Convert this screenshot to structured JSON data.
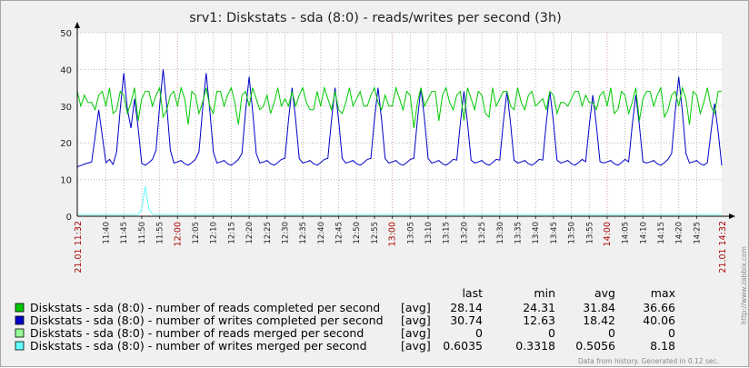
{
  "chart_data": {
    "type": "line",
    "title": "srv1: Diskstats - sda (8:0) - reads/writes per second (3h)",
    "ylim": [
      0,
      50
    ],
    "y_ticks": [
      "0",
      "10",
      "20",
      "30",
      "40",
      "50"
    ],
    "x_range": [
      "11:32",
      "14:32"
    ],
    "x_start_label": "21.01 11:32",
    "x_end_label": "21.01 14:32",
    "x_ticks": [
      "11:40",
      "11:45",
      "11:50",
      "11:55",
      "12:00",
      "12:05",
      "12:10",
      "12:15",
      "12:20",
      "12:25",
      "12:30",
      "12:35",
      "12:40",
      "12:45",
      "12:50",
      "12:55",
      "13:00",
      "13:05",
      "13:10",
      "13:15",
      "13:20",
      "13:25",
      "13:30",
      "13:35",
      "13:40",
      "13:45",
      "13:50",
      "13:55",
      "14:00",
      "14:05",
      "14:10",
      "14:15",
      "14:20",
      "14:25"
    ],
    "major_ticks": [
      "12:00",
      "13:00",
      "14:00"
    ],
    "grid": true,
    "legend_columns": [
      "last",
      "min",
      "avg",
      "max"
    ],
    "series": [
      {
        "name": "Diskstats - sda (8:0) - number of reads completed per second",
        "agg": "[avg]",
        "color": "#00c800",
        "last": "28.14",
        "min": "24.31",
        "avg": "31.84",
        "max": "36.66",
        "pattern": [
          34,
          30,
          33,
          35,
          31,
          29,
          33,
          34,
          30,
          35,
          32,
          29,
          34,
          33,
          28,
          31,
          35,
          30,
          32,
          34
        ],
        "segments": [
          {
            "from": 0,
            "to": 43,
            "low": 27
          }
        ]
      },
      {
        "name": "Diskstats - sda (8:0) - number of writes completed per second",
        "agg": "[avg]",
        "color": "#0000c8",
        "last": "30.74",
        "min": "12.63",
        "avg": "18.42",
        "max": "40.06",
        "pattern": [
          13.5,
          13.8,
          14.2,
          14.5,
          14.8,
          15.2,
          14.3,
          13.9,
          14.6,
          15.5,
          14.1,
          13.6
        ],
        "peaks": [
          {
            "t": 6,
            "v": 29
          },
          {
            "t": 13,
            "v": 39
          },
          {
            "t": 16,
            "v": 32
          },
          {
            "t": 24,
            "v": 40
          },
          {
            "t": 36,
            "v": 39
          },
          {
            "t": 48,
            "v": 38
          },
          {
            "t": 60,
            "v": 35
          },
          {
            "t": 72,
            "v": 35
          },
          {
            "t": 84,
            "v": 35
          },
          {
            "t": 96,
            "v": 35
          },
          {
            "t": 108,
            "v": 34
          },
          {
            "t": 120,
            "v": 34
          },
          {
            "t": 132,
            "v": 34
          },
          {
            "t": 144,
            "v": 33
          },
          {
            "t": 156,
            "v": 33
          },
          {
            "t": 168,
            "v": 38
          },
          {
            "t": 178,
            "v": 30.7
          }
        ]
      },
      {
        "name": "Diskstats - sda (8:0) - number of reads merged per second",
        "agg": "[avg]",
        "color": "#96ff96",
        "last": "0",
        "min": "0",
        "avg": "0",
        "max": "0",
        "flat": 0
      },
      {
        "name": "Diskstats - sda (8:0) - number of writes merged per second",
        "agg": "[avg]",
        "color": "#64ffff",
        "last": "0.6035",
        "min": "0.3318",
        "avg": "0.5056",
        "max": "8.18",
        "flat": 0.5,
        "spike": {
          "t": 19,
          "v": 8.18
        }
      }
    ]
  },
  "footer": "Data from history. Generated in 0.12 sec.",
  "watermark": "http://www.zabbix.com"
}
